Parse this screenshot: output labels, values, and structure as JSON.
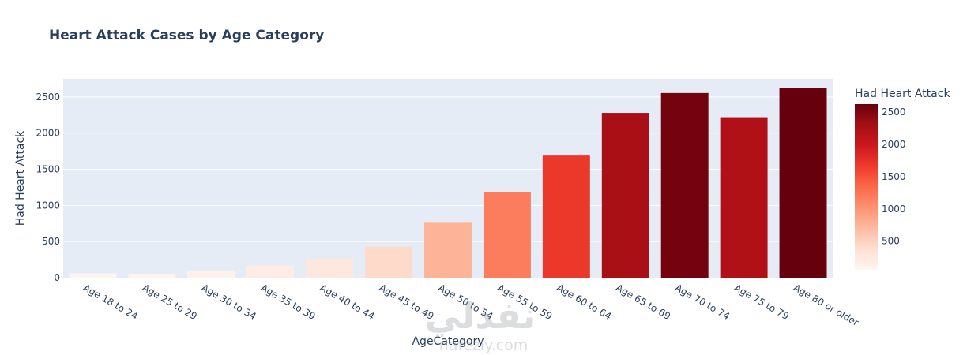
{
  "chart_data": {
    "type": "bar",
    "title": "Heart Attack Cases by Age Category",
    "xlabel": "AgeCategory",
    "ylabel": "Had Heart Attack",
    "categories": [
      "Age 18 to 24",
      "Age 25 to 29",
      "Age 30 to 34",
      "Age 35 to 39",
      "Age 40 to 44",
      "Age 45 to 49",
      "Age 50 to 54",
      "Age 55 to 59",
      "Age 60 to 64",
      "Age 65 to 69",
      "Age 70 to 74",
      "Age 75 to 79",
      "Age 80 or older"
    ],
    "values": [
      60,
      55,
      100,
      170,
      260,
      430,
      760,
      1185,
      1690,
      2280,
      2555,
      2220,
      2625
    ],
    "ylim": [
      0,
      2750
    ],
    "yticks": [
      0,
      500,
      1000,
      1500,
      2000,
      2500
    ],
    "colorbar": {
      "title": "Had Heart Attack",
      "colorscale": "Reds",
      "range": [
        55,
        2625
      ],
      "ticks": [
        500,
        1000,
        1500,
        2000,
        2500
      ]
    },
    "grid": true,
    "plot_bgcolor": "#e5ecf6"
  },
  "watermark": {
    "arabic": "نفذلي",
    "latin": "nafezly.com"
  }
}
